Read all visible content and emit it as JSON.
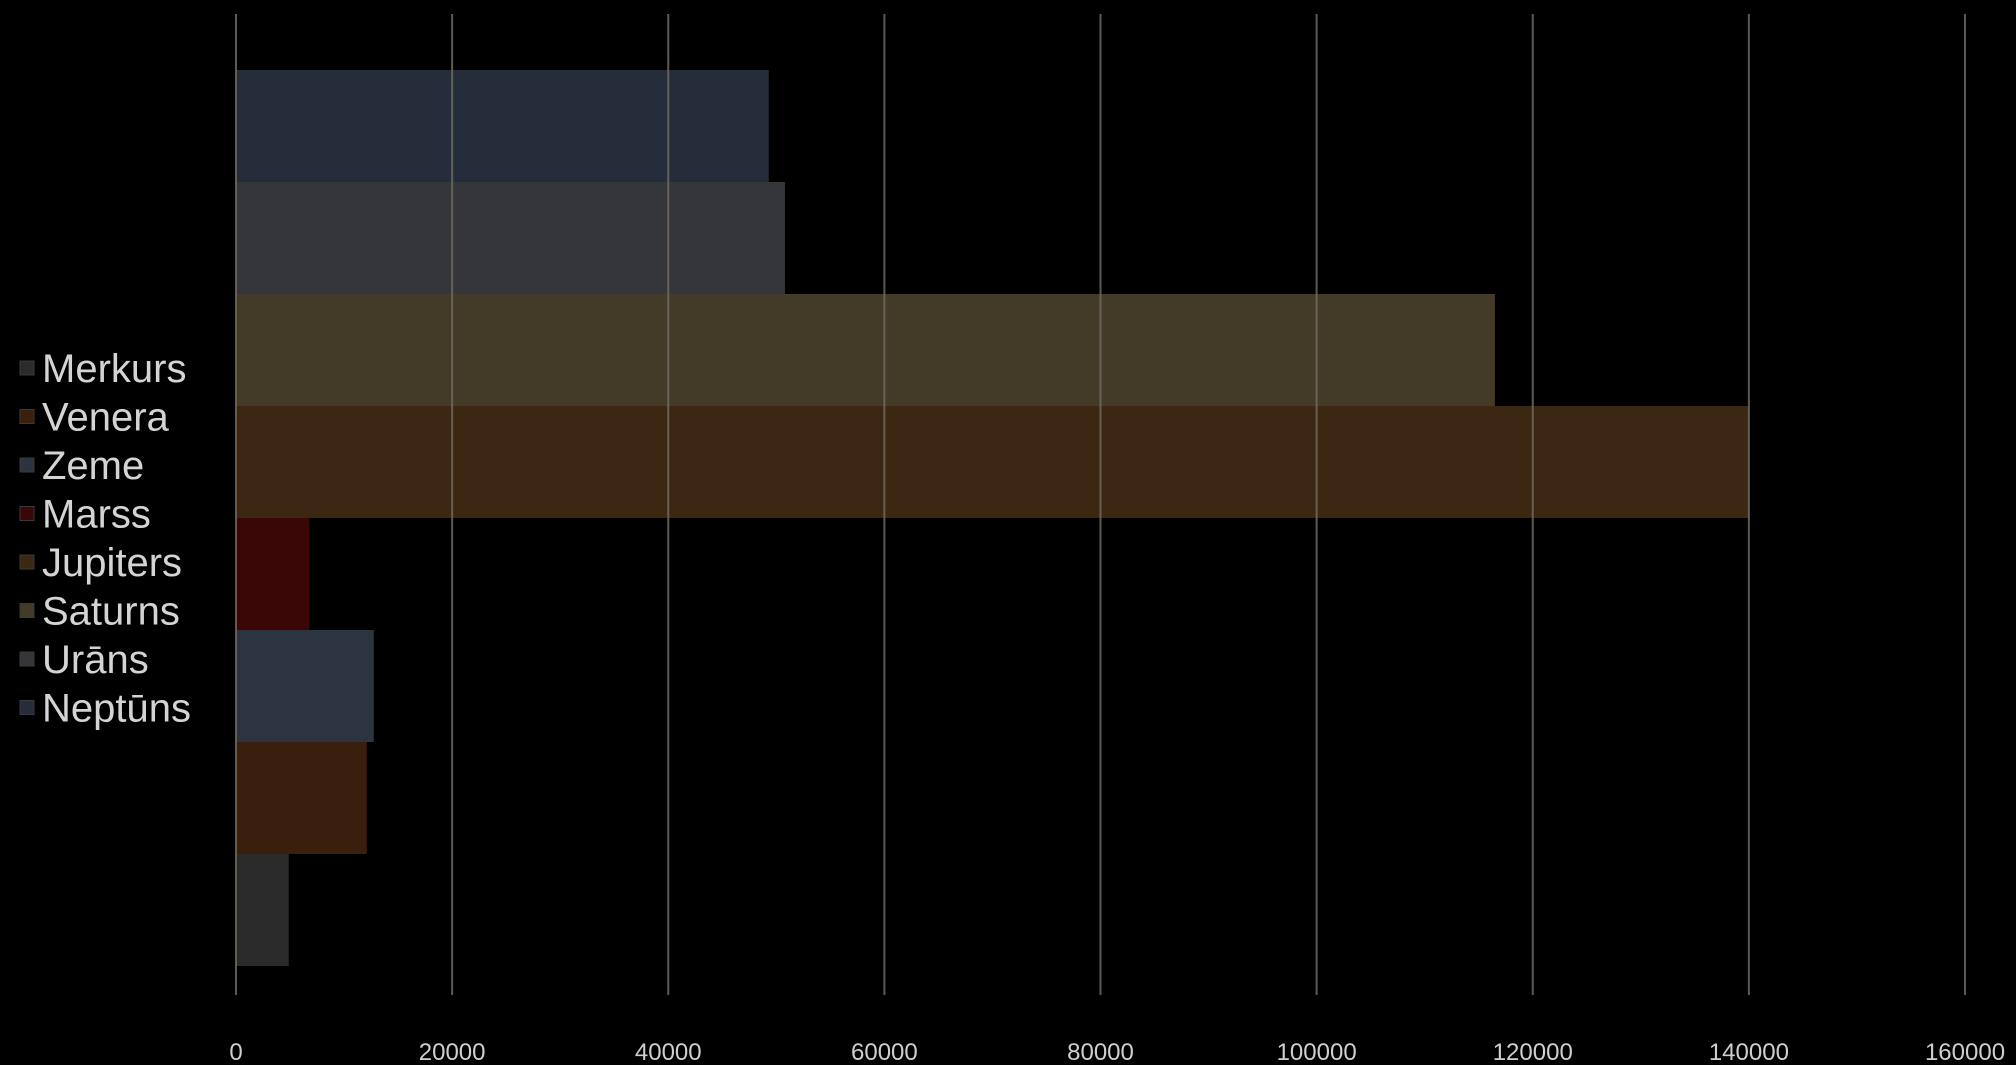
{
  "chart_data": {
    "type": "bar",
    "orientation": "horizontal",
    "categories": [
      "Merkurs",
      "Venera",
      "Zeme",
      "Marss",
      "Jupiters",
      "Saturns",
      "Urāns",
      "Neptūns"
    ],
    "values": [
      4880,
      12100,
      12750,
      6800,
      140000,
      116500,
      50800,
      49300
    ],
    "series_colors": [
      "#2b2b2b",
      "#3a1f0c",
      "#2c3440",
      "#3a0606",
      "#3c2713",
      "#433a27",
      "#35363a",
      "#242d39"
    ],
    "xlim": [
      0,
      160000
    ],
    "x_ticks": [
      "0",
      "20000",
      "40000",
      "60000",
      "80000",
      "100000",
      "120000",
      "140000",
      "160000"
    ],
    "grid": true,
    "legend": {
      "placement": "left",
      "entries": [
        "Merkurs",
        "Venera",
        "Zeme",
        "Marss",
        "Jupiters",
        "Saturns",
        "Urāns",
        "Neptūns"
      ]
    },
    "title": "",
    "xlabel": "",
    "ylabel": ""
  },
  "colors": {
    "background": "#000000",
    "gridline": "#6e6a60",
    "tick_text": "#cfcfcf",
    "legend_text": "#d4d4d4"
  }
}
